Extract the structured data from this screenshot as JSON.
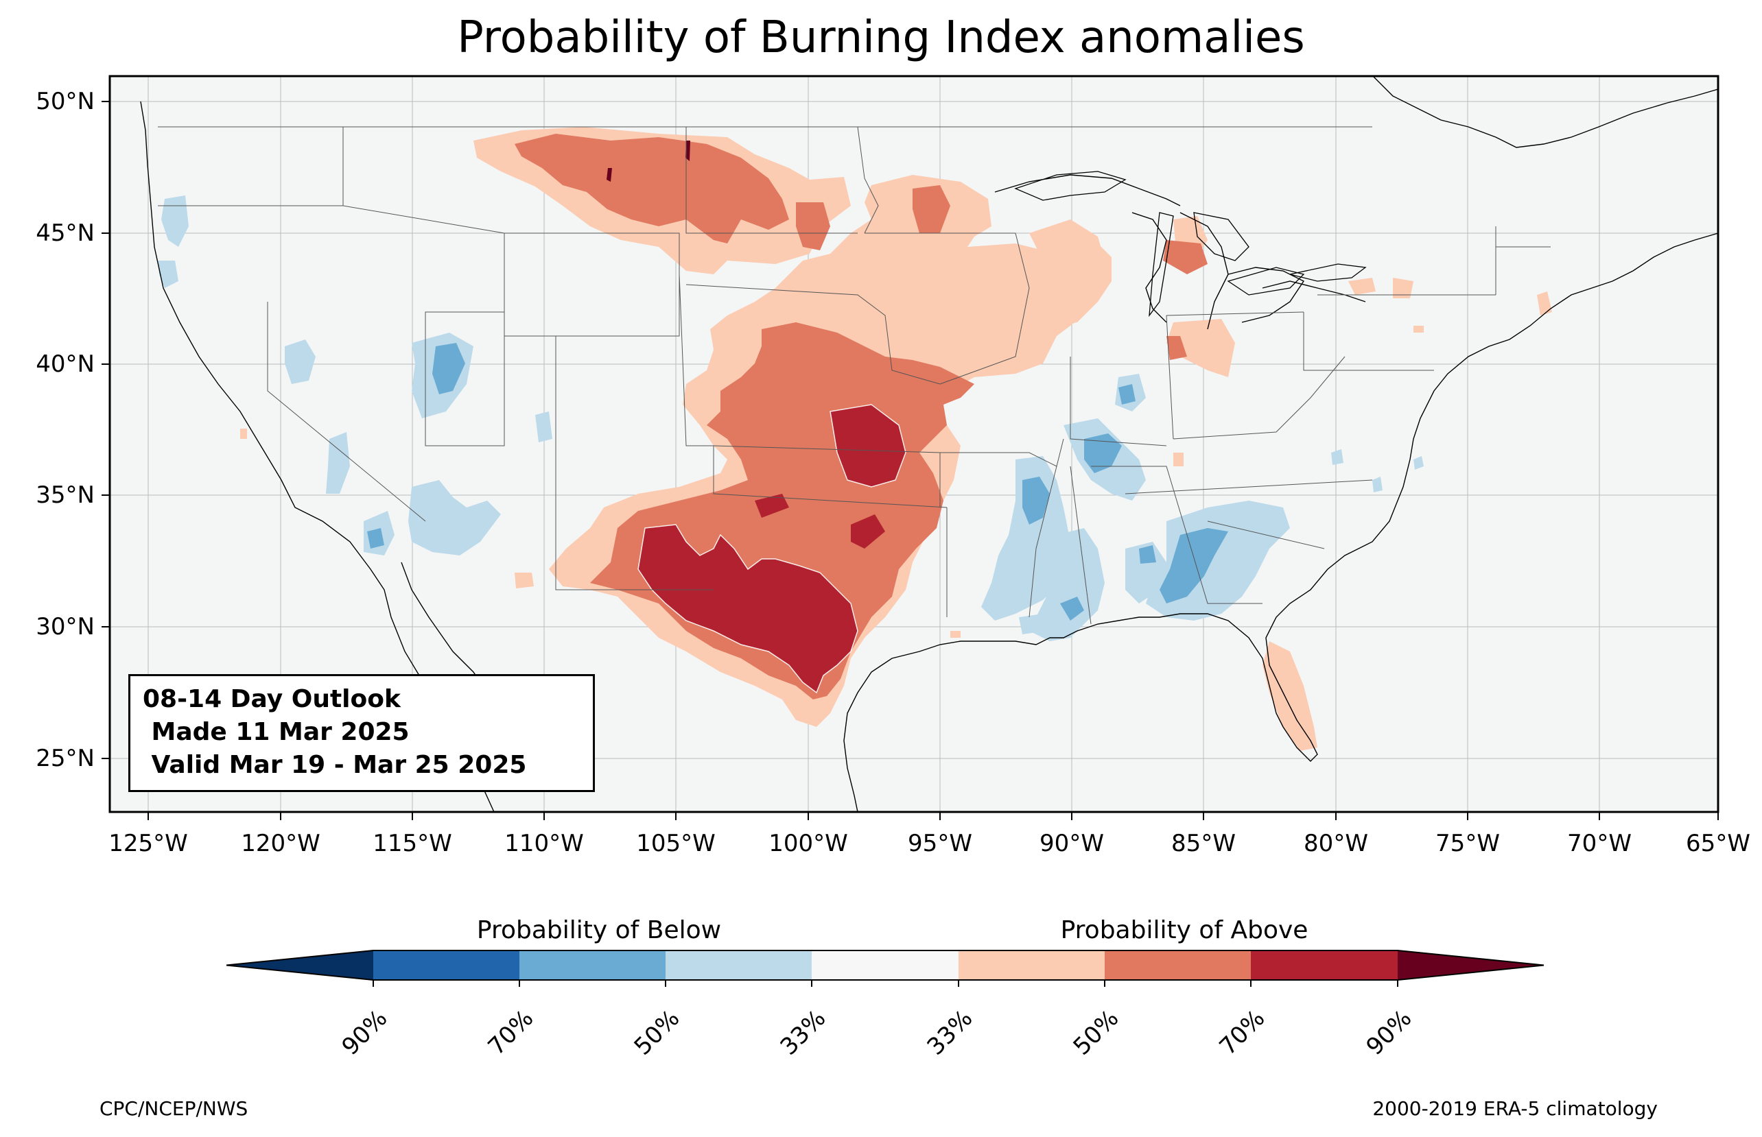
{
  "title": "Probability of Burning Index anomalies",
  "info_box": {
    "line1": "08-14 Day Outlook",
    "line2": " Made 11 Mar 2025",
    "line3": " Valid Mar 19 - Mar 25 2025"
  },
  "axes": {
    "x_ticks": [
      "125°W",
      "120°W",
      "115°W",
      "110°W",
      "105°W",
      "100°W",
      "95°W",
      "90°W",
      "85°W",
      "80°W",
      "75°W",
      "70°W",
      "65°W"
    ],
    "y_ticks": [
      "50°N",
      "45°N",
      "40°N",
      "35°N",
      "30°N",
      "25°N"
    ]
  },
  "colorbar": {
    "below_label": "Probability of Below",
    "above_label": "Probability of Above",
    "ticks": [
      "90%",
      "70%",
      "50%",
      "33%",
      "33%",
      "50%",
      "70%",
      "90%"
    ],
    "colors": [
      "#053061",
      "#2166ac",
      "#6aabd3",
      "#bcdaea",
      "#f7f7f7",
      "#fbcbb2",
      "#e0795f",
      "#b2212f",
      "#67001f"
    ]
  },
  "footer": {
    "left": "CPC/NCEP/NWS",
    "right": "2000-2019 ERA-5 climatology"
  },
  "colors": {
    "background": "#f4f6f6",
    "above_33": "#fbcbb2",
    "above_50": "#e0795f",
    "above_70": "#b2212f",
    "above_90": "#67001f",
    "below_33": "#bcdaea",
    "below_50": "#6aabd3",
    "below_70": "#2166ac"
  }
}
